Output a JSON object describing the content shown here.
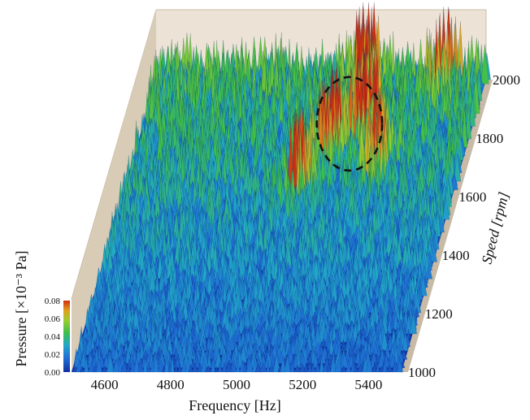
{
  "chart_data": {
    "type": "surface",
    "title": "",
    "xlabel": "Frequency [Hz]",
    "ylabel": "Speed [rpm]",
    "zlabel": "Pressure  [×10⁻³ Pa]",
    "xlim": [
      4500,
      5500
    ],
    "ylim": [
      1000,
      2000
    ],
    "zlim": [
      0,
      0.08
    ],
    "x_ticks": [
      "4600",
      "4800",
      "5000",
      "5200",
      "5400"
    ],
    "x_tick_values": [
      4600,
      4800,
      5000,
      5200,
      5400
    ],
    "y_ticks": [
      "1000",
      "1200",
      "1400",
      "1600",
      "1800",
      "2000"
    ],
    "y_tick_values": [
      1000,
      1200,
      1400,
      1600,
      1800,
      2000
    ],
    "colorbar_ticks": [
      "0.00",
      "0.02",
      "0.04",
      "0.06",
      "0.08"
    ],
    "colormap": [
      "#1030a0",
      "#1f6fd6",
      "#22a8c8",
      "#3cbf4a",
      "#9acd32",
      "#e0a020",
      "#d03010"
    ],
    "highlight": {
      "shape": "dashed-ellipse",
      "center": [
        5150,
        1750
      ],
      "radii": [
        160,
        250
      ]
    },
    "peaks": [
      {
        "frequency": 5090,
        "speed": 1750,
        "pressure": 0.075
      },
      {
        "frequency": 5180,
        "speed": 1820,
        "pressure": 0.07
      },
      {
        "frequency": 5140,
        "speed": 1980,
        "pressure": 0.072
      },
      {
        "frequency": 5030,
        "speed": 1620,
        "pressure": 0.06
      },
      {
        "frequency": 5250,
        "speed": 1700,
        "pressure": 0.065
      },
      {
        "frequency": 5380,
        "speed": 1980,
        "pressure": 0.06
      }
    ]
  }
}
